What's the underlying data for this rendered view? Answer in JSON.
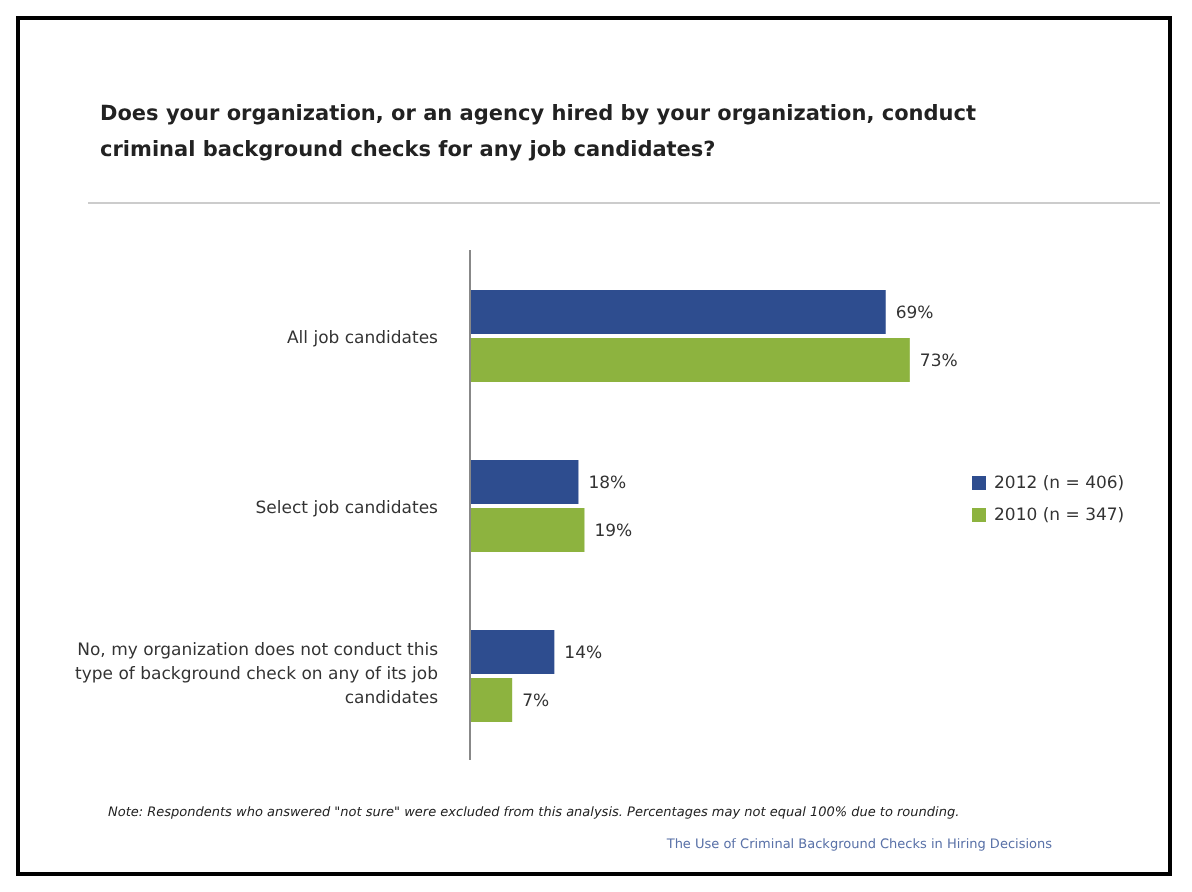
{
  "chart_data": {
    "type": "bar",
    "orientation": "horizontal",
    "title": "Does your organization, or an agency hired by your organization, conduct criminal background checks for any job candidates?",
    "categories": [
      "All job candidates",
      "Select job candidates",
      "No, my organization does not conduct this type of background check on any of its job candidates"
    ],
    "series": [
      {
        "name": "2012 (n = 406)",
        "color": "#2e4d8f",
        "values": [
          69,
          18,
          14
        ],
        "value_labels": [
          "69%",
          "18%",
          "14%"
        ]
      },
      {
        "name": "2010 (n = 347)",
        "color": "#8db33f",
        "values": [
          73,
          19,
          7
        ],
        "value_labels": [
          "73%",
          "19%",
          "7%"
        ]
      }
    ],
    "legend": "right",
    "annotations": [
      "Note: Respondents who answered \"not sure\" were excluded from this analysis. Percentages may not equal 100% due to rounding.",
      "The Use of Criminal Background Checks in Hiring Decisions"
    ]
  }
}
